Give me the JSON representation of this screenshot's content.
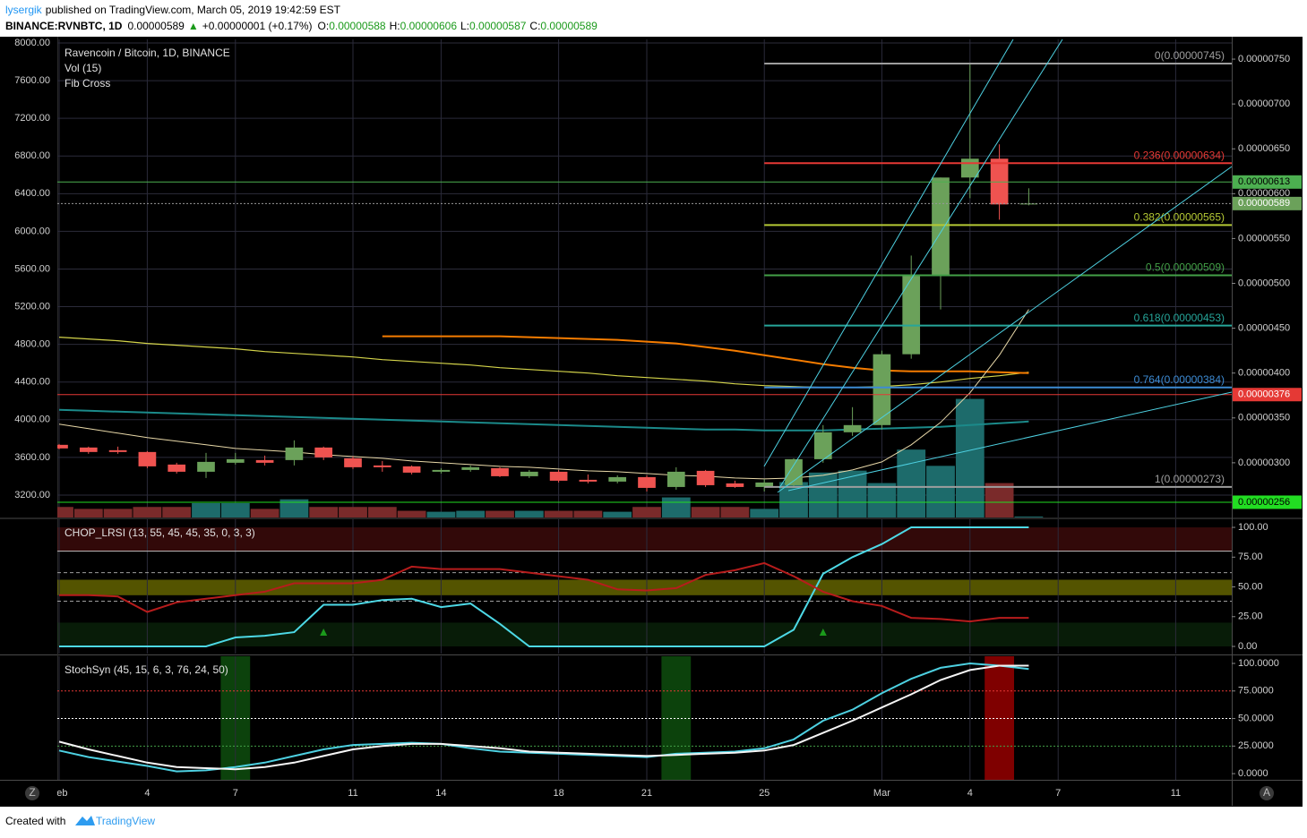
{
  "header": {
    "author": "lysergik",
    "published": "published on TradingView.com, March 05, 2019 19:42:59 EST",
    "symbol": "BINANCE:RVNBTC, 1D",
    "last": "0.00000589",
    "arrow": "▲",
    "change": "+0.00000001 (+0.17%)",
    "ohlc": [
      {
        "key": "O:",
        "value": "0.00000588"
      },
      {
        "key": "H:",
        "value": "0.00000606"
      },
      {
        "key": "L:",
        "value": "0.00000587"
      },
      {
        "key": "C:",
        "value": "0.00000589"
      }
    ]
  },
  "footer": {
    "text": "Created with",
    "brand": "TradingView"
  },
  "ui": {
    "zoom": "Z",
    "auto": "A"
  },
  "chart_data": [
    {
      "type": "candlestick",
      "title": "Ravencoin / Bitcoin, 1D, BINANCE",
      "indicators": [
        "Vol (15)",
        "Fib Cross"
      ],
      "categories": [
        "Feb",
        null,
        null,
        "4",
        null,
        null,
        "7",
        null,
        null,
        null,
        "11",
        null,
        null,
        "14",
        null,
        null,
        null,
        "18",
        null,
        null,
        "21",
        null,
        null,
        null,
        "25",
        null,
        null,
        null,
        "Mar",
        null,
        null,
        "4",
        null,
        null,
        "7",
        null,
        null,
        null,
        "11",
        null,
        null
      ],
      "open": [
        3.2e-06,
        3.17e-06,
        3.14e-06,
        3.12e-06,
        2.98e-06,
        2.9e-06,
        3e-06,
        3.03e-06,
        3.03e-06,
        3.17e-06,
        3.05e-06,
        2.97e-06,
        2.96e-06,
        2.9e-06,
        2.92e-06,
        2.94e-06,
        2.85e-06,
        2.9e-06,
        2.81e-06,
        2.79e-06,
        2.84e-06,
        2.73e-06,
        2.91e-06,
        2.77e-06,
        2.73e-06,
        2.75e-06,
        3.04e-06,
        3.34e-06,
        3.42e-06,
        4.21e-06,
        5.1e-06,
        6.18e-06,
        6.39e-06,
        5.88e-06,
        null,
        null,
        null,
        null,
        null,
        null,
        null
      ],
      "high": [
        3.21e-06,
        3.18e-06,
        3.18e-06,
        3.13e-06,
        3e-06,
        3.11e-06,
        3.11e-06,
        3.08e-06,
        3.25e-06,
        3.18e-06,
        3.07e-06,
        3.02e-06,
        2.97e-06,
        2.94e-06,
        2.97e-06,
        2.95e-06,
        2.92e-06,
        2.92e-06,
        2.87e-06,
        2.86e-06,
        2.86e-06,
        2.95e-06,
        2.92e-06,
        2.8e-06,
        2.82e-06,
        3.05e-06,
        3.42e-06,
        3.62e-06,
        4.25e-06,
        5.31e-06,
        6.18e-06,
        7.45e-06,
        6.55e-06,
        6.06e-06,
        null,
        null,
        null,
        null,
        null,
        null,
        null
      ],
      "low": [
        3.15e-06,
        3.1e-06,
        3.1e-06,
        2.94e-06,
        2.88e-06,
        2.83e-06,
        2.98e-06,
        2.97e-06,
        2.97e-06,
        3.03e-06,
        2.93e-06,
        2.9e-06,
        2.87e-06,
        2.88e-06,
        2.9e-06,
        2.84e-06,
        2.83e-06,
        2.78e-06,
        2.77e-06,
        2.77e-06,
        2.68e-06,
        2.7e-06,
        2.73e-06,
        2.72e-06,
        2.68e-06,
        2.72e-06,
        3e-06,
        3.3e-06,
        3.37e-06,
        4.16e-06,
        4.71e-06,
        5.95e-06,
        5.71e-06,
        5.87e-06,
        null,
        null,
        null,
        null,
        null,
        null,
        null
      ],
      "close": [
        3.16e-06,
        3.12e-06,
        3.12e-06,
        2.96e-06,
        2.9e-06,
        3.01e-06,
        3.04e-06,
        3e-06,
        3.17e-06,
        3.06e-06,
        2.95e-06,
        2.95e-06,
        2.89e-06,
        2.92e-06,
        2.95e-06,
        2.85e-06,
        2.9e-06,
        2.8e-06,
        2.79e-06,
        2.84e-06,
        2.72e-06,
        2.9e-06,
        2.75e-06,
        2.73e-06,
        2.78e-06,
        3.04e-06,
        3.34e-06,
        3.42e-06,
        4.21e-06,
        5.1e-06,
        6.18e-06,
        6.39e-06,
        5.88e-06,
        5.89e-06,
        null,
        null,
        null,
        null,
        null,
        null,
        null
      ],
      "up_color": "#6ba15a",
      "down_color": "#ef5350",
      "volume": [
        11,
        9,
        9,
        11,
        11,
        15,
        15,
        9,
        19,
        11,
        11,
        11,
        7,
        6,
        7,
        7,
        7,
        7,
        7,
        6,
        11,
        21,
        11,
        11,
        9,
        37,
        47,
        49,
        36,
        71,
        54,
        124,
        36,
        1,
        null,
        null,
        null,
        null,
        null,
        null,
        null
      ],
      "volume_lim": [
        0,
        500
      ],
      "volume_colors": {
        "up": "#1d6b6b",
        "down": "#7a2a2a"
      },
      "series": [
        {
          "color": "#d4d44a",
          "width": 1.2,
          "values": [
            4.4e-06,
            4.38e-06,
            4.36e-06,
            4.33e-06,
            4.31e-06,
            4.29e-06,
            4.27e-06,
            4.24e-06,
            4.22e-06,
            4.2e-06,
            4.18e-06,
            4.15e-06,
            4.13e-06,
            4.11e-06,
            4.09e-06,
            4.06e-06,
            4.04e-06,
            4.02e-06,
            4e-06,
            3.97e-06,
            3.95e-06,
            3.93e-06,
            3.91e-06,
            3.88e-06,
            3.86e-06,
            3.85e-06,
            3.84e-06,
            3.84e-06,
            3.85e-06,
            3.87e-06,
            3.9e-06,
            3.94e-06,
            3.97e-06,
            4.01e-06,
            null,
            null,
            null,
            null,
            null,
            null,
            null
          ]
        },
        {
          "color": "#f57c00",
          "width": 2,
          "values": [
            null,
            null,
            null,
            null,
            null,
            null,
            null,
            null,
            null,
            null,
            null,
            4.41e-06,
            4.41e-06,
            4.41e-06,
            4.41e-06,
            4.41e-06,
            4.4e-06,
            4.39e-06,
            4.38e-06,
            4.37e-06,
            4.35e-06,
            4.33e-06,
            4.29e-06,
            4.25e-06,
            4.2e-06,
            4.15e-06,
            4.1e-06,
            4.06e-06,
            4.03e-06,
            4.02e-06,
            4.02e-06,
            4.02e-06,
            4.01e-06,
            4e-06,
            null,
            null,
            null,
            null,
            null,
            null,
            null
          ]
        },
        {
          "color": "#1b8a8a",
          "width": 2,
          "values": [
            3.59e-06,
            3.58e-06,
            3.57e-06,
            3.56e-06,
            3.55e-06,
            3.54e-06,
            3.53e-06,
            3.52e-06,
            3.51e-06,
            3.5e-06,
            3.49e-06,
            3.48e-06,
            3.47e-06,
            3.46e-06,
            3.45e-06,
            3.44e-06,
            3.43e-06,
            3.42e-06,
            3.41e-06,
            3.4e-06,
            3.39e-06,
            3.38e-06,
            3.37e-06,
            3.37e-06,
            3.36e-06,
            3.36e-06,
            3.36e-06,
            3.37e-06,
            3.38e-06,
            3.39e-06,
            3.4e-06,
            3.42e-06,
            3.44e-06,
            3.46e-06,
            null,
            null,
            null,
            null,
            null,
            null,
            null
          ]
        },
        {
          "color": "#e8d8a8",
          "width": 1,
          "values": [
            3.43e-06,
            3.38e-06,
            3.33e-06,
            3.28e-06,
            3.24e-06,
            3.2e-06,
            3.16e-06,
            3.14e-06,
            3.12e-06,
            3.09e-06,
            3.07e-06,
            3.05e-06,
            3.02e-06,
            3e-06,
            2.98e-06,
            2.96e-06,
            2.95e-06,
            2.93e-06,
            2.91e-06,
            2.9e-06,
            2.88e-06,
            2.86e-06,
            2.85e-06,
            2.83e-06,
            2.82e-06,
            2.83e-06,
            2.86e-06,
            2.92e-06,
            3.01e-06,
            3.2e-06,
            3.45e-06,
            3.78e-06,
            4.2e-06,
            4.71e-06,
            null,
            null,
            null,
            null,
            null,
            null,
            null
          ]
        }
      ],
      "fib_levels": [
        {
          "label": "0(0.00000745)",
          "value": 7.45e-06,
          "color": "#9e9e9e"
        },
        {
          "label": "0.236(0.00000634)",
          "value": 6.34e-06,
          "color": "#e53935"
        },
        {
          "label": "0.382(0.00000565)",
          "value": 5.65e-06,
          "color": "#b5c934"
        },
        {
          "label": "0.5(0.00000509)",
          "value": 5.09e-06,
          "color": "#43a047"
        },
        {
          "label": "0.618(0.00000453)",
          "value": 4.53e-06,
          "color": "#26a69a"
        },
        {
          "label": "0.764(0.00000384)",
          "value": 3.84e-06,
          "color": "#3d8bd4"
        },
        {
          "label": "1(0.00000273)",
          "value": 2.73e-06,
          "color": "#9e9e9e"
        }
      ],
      "price_lines": [
        {
          "label": "0.00000613",
          "value": 6.13e-06,
          "color": "#4caf50",
          "text_color": "#000000",
          "dashed": false
        },
        {
          "label": "0.00000589",
          "value": 5.89e-06,
          "color": "#6ba15a",
          "text_color": "#ffffff",
          "dashed": true
        },
        {
          "label": "0.00000376",
          "value": 3.76e-06,
          "color": "#e53935",
          "text_color": "#ffffff",
          "dashed": false
        },
        {
          "label": "0.00000256",
          "value": 2.56e-06,
          "color": "#22dd22",
          "text_color": "#000000",
          "dashed": false
        }
      ],
      "ylim": [
        2.39e-06,
        7.72e-06
      ],
      "yticks": [
        {
          "value": 7.5e-06,
          "label": "0.00000750"
        },
        {
          "value": 7e-06,
          "label": "0.00000700"
        },
        {
          "value": 6.5e-06,
          "label": "0.00000650"
        },
        {
          "value": 6e-06,
          "label": "0.00000600"
        },
        {
          "value": 5.5e-06,
          "label": "0.00000550"
        },
        {
          "value": 5e-06,
          "label": "0.00000500"
        },
        {
          "value": 4.5e-06,
          "label": "0.00000450"
        },
        {
          "value": 4e-06,
          "label": "0.00000400"
        },
        {
          "value": 3.5e-06,
          "label": "0.00000350"
        },
        {
          "value": 3e-06,
          "label": "0.00000300"
        }
      ],
      "y2lim": [
        2962,
        8038
      ],
      "y2ticks": [
        {
          "value": 8000,
          "label": "8000.00"
        },
        {
          "value": 7600,
          "label": "7600.00"
        },
        {
          "value": 7200,
          "label": "7200.00"
        },
        {
          "value": 6800,
          "label": "6800.00"
        },
        {
          "value": 6400,
          "label": "6400.00"
        },
        {
          "value": 6000,
          "label": "6000.00"
        },
        {
          "value": 5600,
          "label": "5600.00"
        },
        {
          "value": 5200,
          "label": "5200.00"
        },
        {
          "value": 4800,
          "label": "4800.00"
        },
        {
          "value": 4400,
          "label": "4400.00"
        },
        {
          "value": 4000,
          "label": "4000.00"
        },
        {
          "value": 3600,
          "label": "3600.00"
        },
        {
          "value": 3200,
          "label": "3200.00"
        }
      ],
      "grid": true
    },
    {
      "type": "line",
      "title": "CHOP_LRSI (13, 55, 45, 45, 35, 0, 3, 3)",
      "series": [
        {
          "color": "#4dd9e6",
          "values": [
            0,
            0,
            0,
            0,
            0,
            0,
            7.5,
            9,
            12,
            35,
            35,
            39,
            40,
            33,
            36,
            19,
            0,
            0,
            0,
            0,
            0,
            0,
            0,
            0,
            0,
            14,
            61,
            75,
            86,
            100,
            100,
            100,
            100,
            100,
            null,
            null,
            null,
            null,
            null,
            null,
            null
          ]
        },
        {
          "color": "#b71c1c",
          "values": [
            43,
            43,
            42,
            29,
            37,
            40,
            43,
            46,
            53,
            53,
            53,
            56,
            67,
            65,
            65,
            65,
            62,
            59,
            56,
            48,
            47,
            49,
            60,
            64,
            70,
            59,
            46,
            38,
            34,
            24,
            23,
            21,
            24,
            24,
            null,
            null,
            null,
            null,
            null,
            null,
            null
          ]
        }
      ],
      "zones": [
        {
          "range": [
            80,
            100
          ],
          "color": "rgba(110,20,20,0.45)"
        },
        {
          "range": [
            43,
            56
          ],
          "color": "rgba(140,140,0,0.6)"
        },
        {
          "range": [
            0,
            20
          ],
          "color": "rgba(20,70,20,0.4)"
        }
      ],
      "hlines": [
        {
          "value": 80,
          "color": "#bdbdbd",
          "dash": "none"
        },
        {
          "value": 62,
          "color": "#9e9e9e",
          "dash": "4 3"
        },
        {
          "value": 38,
          "color": "#9e9e9e",
          "dash": "4 3"
        }
      ],
      "signals": [
        9,
        26
      ],
      "signal_color": "#1b9a1b",
      "ylim": [
        -6,
        106.8
      ],
      "yticks": [
        {
          "value": 100,
          "label": "100.00"
        },
        {
          "value": 75,
          "label": "75.00"
        },
        {
          "value": 50,
          "label": "50.00"
        },
        {
          "value": 25,
          "label": "25.00"
        },
        {
          "value": 0,
          "label": "0.00"
        }
      ]
    },
    {
      "type": "line",
      "title": "StochSyn (45, 15, 6, 3, 76, 24, 50)",
      "series": [
        {
          "color": "#4dd0e1",
          "values": [
            21,
            15,
            11,
            7,
            2,
            3,
            6,
            10,
            16,
            22,
            26,
            27,
            28,
            27,
            23,
            20,
            19,
            18,
            17,
            16,
            15,
            18,
            19,
            20,
            23,
            31,
            48,
            58,
            73,
            86,
            96,
            100,
            98,
            95,
            null,
            null,
            null,
            null,
            null,
            null,
            null
          ]
        },
        {
          "color": "#f5f5f5",
          "values": [
            29,
            22,
            16,
            10,
            6,
            5,
            4,
            6,
            10,
            16,
            22,
            25,
            27,
            27,
            25,
            23,
            20,
            19,
            18,
            17,
            16,
            17,
            18,
            19,
            21,
            26,
            37,
            48,
            60,
            72,
            85,
            94,
            98,
            98,
            null,
            null,
            null,
            null,
            null,
            null,
            null
          ]
        }
      ],
      "highlights": [
        {
          "index": 6,
          "color": "rgba(20,110,20,0.6)"
        },
        {
          "index": 21,
          "color": "rgba(20,110,20,0.6)"
        },
        {
          "index": 32,
          "color": "rgba(170,0,0,0.75)"
        }
      ],
      "hlines": [
        {
          "value": 75,
          "color": "#e53935",
          "dash": "2 2"
        },
        {
          "value": 50,
          "color": "#ffffff",
          "dash": "2 2"
        },
        {
          "value": 25,
          "color": "#43a047",
          "dash": "2 2"
        }
      ],
      "ylim": [
        -5.6,
        106.5
      ],
      "yticks": [
        {
          "value": 100,
          "label": "100.0000"
        },
        {
          "value": 75,
          "label": "75.0000"
        },
        {
          "value": 50,
          "label": "50.0000"
        },
        {
          "value": 25,
          "label": "25.0000"
        },
        {
          "value": 0,
          "label": "0.0000"
        }
      ]
    }
  ]
}
